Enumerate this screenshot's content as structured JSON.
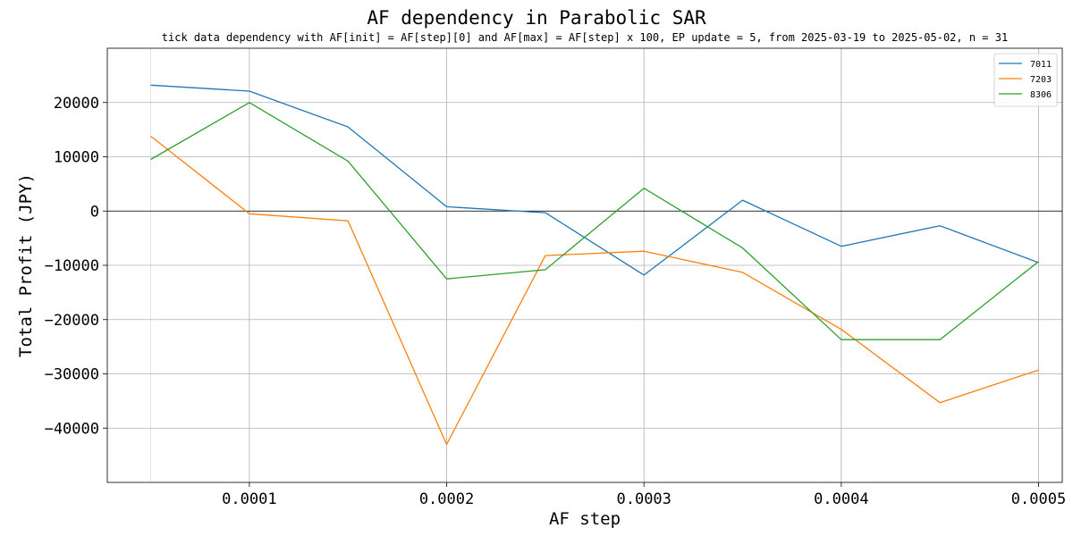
{
  "chart_data": {
    "type": "line",
    "title": "AF dependency in Parabolic SAR",
    "subtitle": "tick data dependency with AF[init] = AF[step][0] and AF[max] = AF[step] x 100, EP update = 5, from 2025-03-19 to 2025-05-02, n = 31",
    "xlabel": "AF step",
    "ylabel": "Total Profit (JPY)",
    "x": [
      5e-05,
      0.0001,
      0.00015,
      0.0002,
      0.00025,
      0.0003,
      0.00035,
      0.0004,
      0.00045,
      0.0005
    ],
    "xlim": [
      2.8e-05,
      0.000512
    ],
    "ylim": [
      -50000,
      30000
    ],
    "x_ticks": [
      0.0001,
      0.0002,
      0.0003,
      0.0004,
      0.0005
    ],
    "x_tick_labels": [
      "0.0001",
      "0.0002",
      "0.0003",
      "0.0004",
      "0.0005"
    ],
    "y_ticks": [
      -40000,
      -30000,
      -20000,
      -10000,
      0,
      10000,
      20000
    ],
    "y_tick_labels": [
      "−40000",
      "−30000",
      "−20000",
      "−10000",
      "0",
      "10000",
      "20000"
    ],
    "grid": true,
    "zero_line": true,
    "legend_position": "top-right",
    "series": [
      {
        "name": "7011",
        "color": "#1f77b4",
        "values": [
          23200,
          22100,
          15500,
          800,
          -300,
          -11800,
          2000,
          -6500,
          -2700,
          -9500
        ]
      },
      {
        "name": "7203",
        "color": "#ff7f0e",
        "values": [
          13800,
          -500,
          -1800,
          -43000,
          -8200,
          -7400,
          -11300,
          -21800,
          -35300,
          -29300
        ]
      },
      {
        "name": "8306",
        "color": "#2ca02c",
        "values": [
          9500,
          20000,
          9200,
          -12500,
          -10800,
          4200,
          -6800,
          -23700,
          -23700,
          -9300
        ]
      }
    ]
  }
}
